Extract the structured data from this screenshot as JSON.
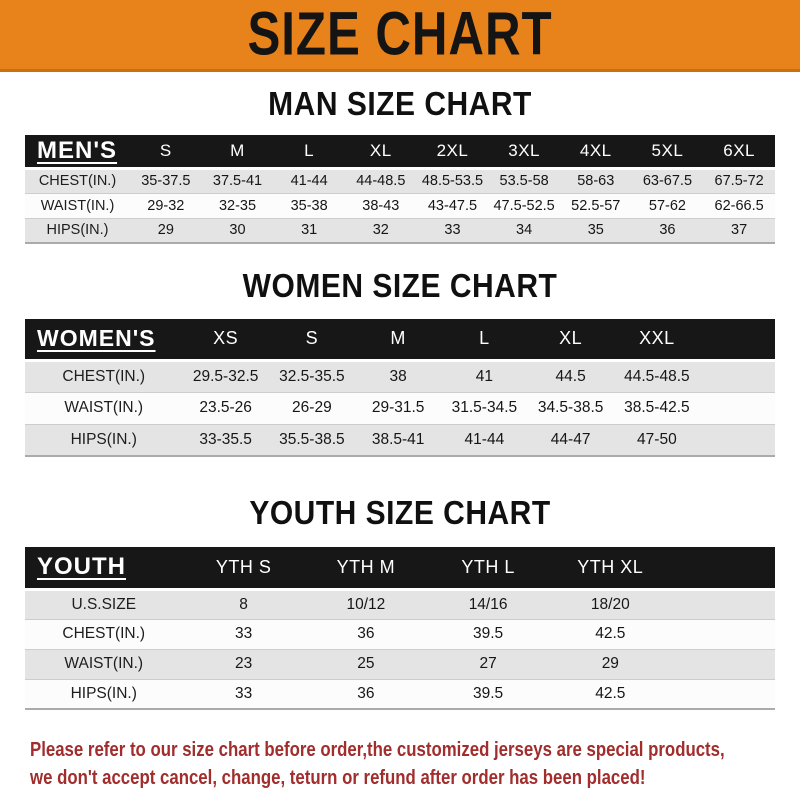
{
  "banner": {
    "title": "SIZE CHART",
    "bg_color": "#E8821B",
    "bar_color": "#171717",
    "stripe_color": "#E4E4E4",
    "text_color": "#141414"
  },
  "chart_data": [
    {
      "type": "table",
      "title": "MAN SIZE CHART",
      "corner_label": "MEN'S",
      "columns": [
        "S",
        "M",
        "L",
        "XL",
        "2XL",
        "3XL",
        "4XL",
        "5XL",
        "6XL"
      ],
      "rows": [
        {
          "label": "CHEST(IN.)",
          "values": [
            "35-37.5",
            "37.5-41",
            "41-44",
            "44-48.5",
            "48.5-53.5",
            "53.5-58",
            "58-63",
            "63-67.5",
            "67.5-72"
          ]
        },
        {
          "label": "WAIST(IN.)",
          "values": [
            "29-32",
            "32-35",
            "35-38",
            "38-43",
            "43-47.5",
            "47.5-52.5",
            "52.5-57",
            "57-62",
            "62-66.5"
          ]
        },
        {
          "label": "HIPS(IN.)",
          "values": [
            "29",
            "30",
            "31",
            "32",
            "33",
            "34",
            "35",
            "36",
            "37"
          ]
        }
      ]
    },
    {
      "type": "table",
      "title": "WOMEN SIZE CHART",
      "corner_label": "WOMEN'S",
      "columns": [
        "XS",
        "S",
        "M",
        "L",
        "XL",
        "XXL"
      ],
      "rows": [
        {
          "label": "CHEST(IN.)",
          "values": [
            "29.5-32.5",
            "32.5-35.5",
            "38",
            "41",
            "44.5",
            "44.5-48.5"
          ]
        },
        {
          "label": "WAIST(IN.)",
          "values": [
            "23.5-26",
            "26-29",
            "29-31.5",
            "31.5-34.5",
            "34.5-38.5",
            "38.5-42.5"
          ]
        },
        {
          "label": "HIPS(IN.)",
          "values": [
            "33-35.5",
            "35.5-38.5",
            "38.5-41",
            "41-44",
            "44-47",
            "47-50"
          ]
        }
      ]
    },
    {
      "type": "table",
      "title": "YOUTH SIZE CHART",
      "corner_label": "YOUTH",
      "columns": [
        "YTH S",
        "YTH M",
        "YTH L",
        "YTH XL"
      ],
      "rows": [
        {
          "label": "U.S.SIZE",
          "values": [
            "8",
            "10/12",
            "14/16",
            "18/20"
          ]
        },
        {
          "label": "CHEST(IN.)",
          "values": [
            "33",
            "36",
            "39.5",
            "42.5"
          ]
        },
        {
          "label": "WAIST(IN.)",
          "values": [
            "23",
            "25",
            "27",
            "29"
          ]
        },
        {
          "label": "HIPS(IN.)",
          "values": [
            "33",
            "36",
            "39.5",
            "42.5"
          ]
        }
      ]
    }
  ],
  "footer": {
    "text_color": "#A12D2D",
    "lines": [
      "Please refer to our size chart before order,the customized jerseys are special products,",
      "we don't accept cancel, change, teturn or refund after order has been placed!"
    ]
  }
}
